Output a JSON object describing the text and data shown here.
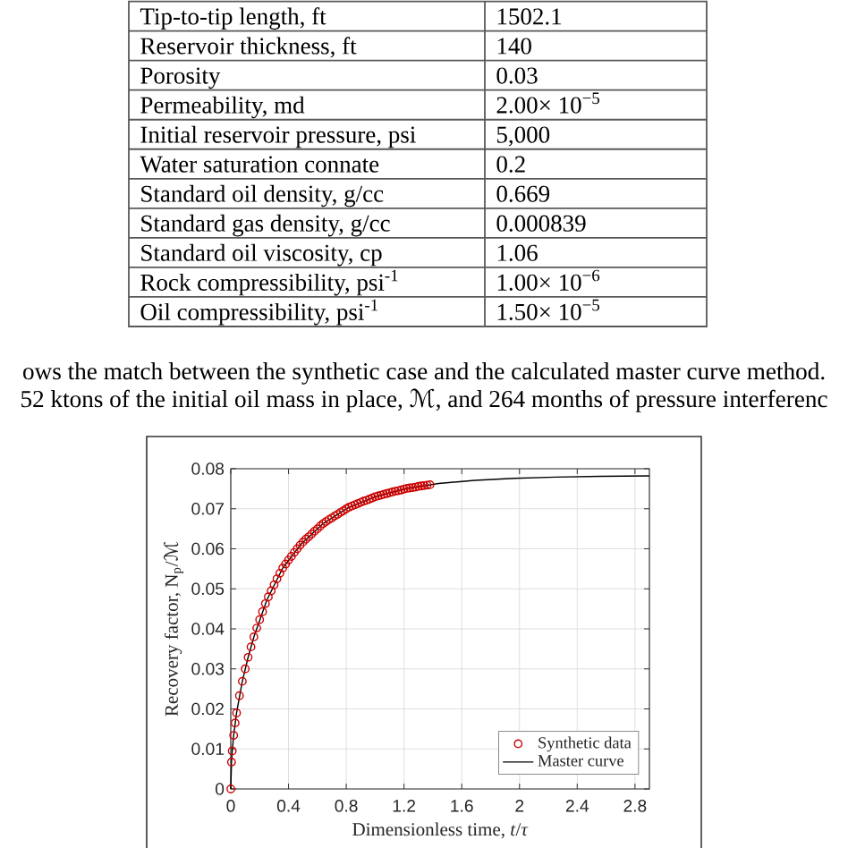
{
  "chart_data": {
    "type": "line",
    "xlabel": "Dimensionless time, *t*/*τ*",
    "ylabel": "Recovery factor, N$_{p}$/ℳ",
    "annotations": [
      "Tip-to-tip length, ft",
      "1502.1",
      "Reservoir thickness, ft",
      "140",
      "Porosity",
      "0.03",
      "Permeability, md",
      "2.00× 10$^{−5}$",
      "Initial reservoir pressure, psi",
      "5,000",
      "Water saturation connate",
      "0.2",
      "Standard oil density, g/cc",
      "0.669",
      "Standard gas density, g/cc",
      "0.000839",
      "Standard oil viscosity, cp",
      "1.06",
      "Rock compressibility, psi$^{-1}$",
      "1.00× 10$^{−6}$",
      "Oil compressibility, psi$^{-1}$",
      "1.50× 10$^{−5}$",
      "ows the match between the synthetic case and the calculated master curve method.",
      "52 ktons of the initial oil mass in place, ℳ, and 264 months of pressure interferenc"
    ],
    "series": [
      {
        "name": "Synthetic data",
        "type": "scatter",
        "marker": "circle",
        "color": "#cc0000",
        "x": [
          0,
          0.005,
          0.01,
          0.02,
          0.03,
          0.04,
          0.06,
          0.08,
          0.1,
          0.12,
          0.14,
          0.16,
          0.18,
          0.2,
          0.22,
          0.24,
          0.26,
          0.28,
          0.3,
          0.32,
          0.34,
          0.36,
          0.38,
          0.4,
          0.42,
          0.44,
          0.46,
          0.48,
          0.5,
          0.52,
          0.54,
          0.56,
          0.58,
          0.6,
          0.62,
          0.64,
          0.66,
          0.68,
          0.7,
          0.72,
          0.74,
          0.76,
          0.78,
          0.8,
          0.82,
          0.84,
          0.86,
          0.88,
          0.9,
          0.92,
          0.94,
          0.96,
          0.98,
          1.0,
          1.02,
          1.04,
          1.06,
          1.08,
          1.1,
          1.12,
          1.14,
          1.16,
          1.18,
          1.2,
          1.22,
          1.24,
          1.26,
          1.28,
          1.3,
          1.32,
          1.34,
          1.36,
          1.38
        ],
        "values": [
          0,
          0.0067,
          0.0095,
          0.0134,
          0.0165,
          0.019,
          0.0233,
          0.0269,
          0.03,
          0.0329,
          0.0355,
          0.038,
          0.0402,
          0.0423,
          0.0443,
          0.0463,
          0.048,
          0.0495,
          0.051,
          0.0525,
          0.0539,
          0.0552,
          0.0562,
          0.0572,
          0.0581,
          0.0591,
          0.06,
          0.0609,
          0.0617,
          0.0624,
          0.063,
          0.0637,
          0.0644,
          0.065,
          0.0657,
          0.0663,
          0.0668,
          0.0673,
          0.0677,
          0.0682,
          0.0686,
          0.0691,
          0.0695,
          0.07,
          0.0704,
          0.0707,
          0.071,
          0.0713,
          0.0716,
          0.0719,
          0.0721,
          0.0724,
          0.0727,
          0.073,
          0.0732,
          0.0734,
          0.0736,
          0.0738,
          0.074,
          0.0742,
          0.0744,
          0.0745,
          0.0747,
          0.0749,
          0.0751,
          0.0752,
          0.0753,
          0.0754,
          0.0756,
          0.0757,
          0.0758,
          0.0759,
          0.076
        ]
      },
      {
        "name": "Master curve",
        "type": "line",
        "color": "#000000",
        "x": [
          0,
          0.005,
          0.01,
          0.02,
          0.04,
          0.08,
          0.12,
          0.16,
          0.25,
          0.36,
          0.49,
          0.64,
          0.81,
          1.0,
          1.21,
          1.44,
          1.69,
          1.96,
          2.25,
          2.56,
          2.9
        ],
        "values": [
          0,
          0.0067,
          0.0095,
          0.0134,
          0.019,
          0.0269,
          0.0329,
          0.038,
          0.0472,
          0.0552,
          0.0613,
          0.0663,
          0.0702,
          0.073,
          0.075,
          0.0763,
          0.0771,
          0.0776,
          0.0779,
          0.0781,
          0.0782
        ]
      }
    ],
    "xlim": [
      0,
      2.9
    ],
    "ylim": [
      0,
      0.08
    ],
    "xticks": [
      0,
      0.4,
      0.8,
      1.2,
      1.6,
      2,
      2.4,
      2.8
    ],
    "yticks": [
      0,
      0.01,
      0.02,
      0.03,
      0.04,
      0.05,
      0.06,
      0.07,
      0.08
    ],
    "grid": true,
    "legend": "bottom right"
  }
}
